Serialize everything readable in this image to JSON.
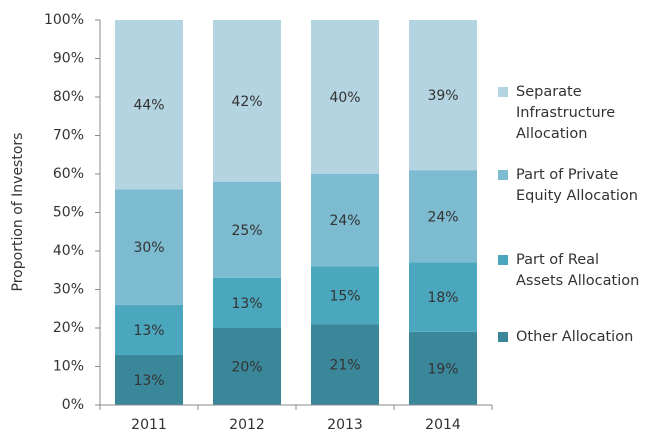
{
  "chart_data": {
    "type": "stacked-bar",
    "y_label": "Proportion of Investors",
    "categories": [
      "2011",
      "2012",
      "2013",
      "2014"
    ],
    "series": [
      {
        "name": "Other Allocation",
        "color": "#3b879a",
        "values": [
          13,
          20,
          21,
          19
        ],
        "value_labels": [
          "13%",
          "20%",
          "21%",
          "19%"
        ]
      },
      {
        "name": "Part of Real Assets Allocation",
        "color": "#4ba7be",
        "values": [
          13,
          13,
          15,
          18
        ],
        "value_labels": [
          "13%",
          "13%",
          "15%",
          "18%"
        ]
      },
      {
        "name": "Part of Private Equity Allocation",
        "color": "#7dbbd0",
        "values": [
          30,
          25,
          24,
          24
        ],
        "value_labels": [
          "30%",
          "25%",
          "24%",
          "24%"
        ]
      },
      {
        "name": "Separate Infrastructure Allocation",
        "color": "#b4d4e1",
        "values": [
          44,
          42,
          40,
          39
        ],
        "value_labels": [
          "44%",
          "42%",
          "40%",
          "39%"
        ]
      }
    ],
    "ylim": [
      0,
      100
    ],
    "yticks": [
      {
        "value": 0,
        "label": "0%"
      },
      {
        "value": 10,
        "label": "10%"
      },
      {
        "value": 20,
        "label": "20%"
      },
      {
        "value": 30,
        "label": "30%"
      },
      {
        "value": 40,
        "label": "40%"
      },
      {
        "value": 50,
        "label": "50%"
      },
      {
        "value": 60,
        "label": "60%"
      },
      {
        "value": 70,
        "label": "70%"
      },
      {
        "value": 80,
        "label": "80%"
      },
      {
        "value": 90,
        "label": "90%"
      },
      {
        "value": 100,
        "label": "100%"
      }
    ],
    "legend": "right"
  }
}
